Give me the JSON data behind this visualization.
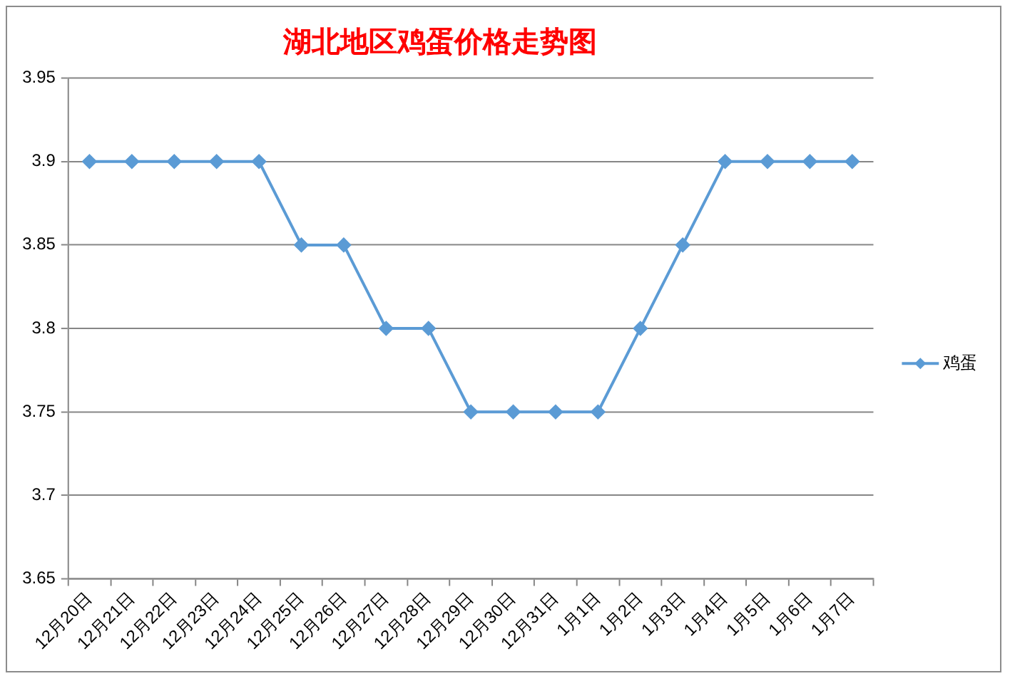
{
  "chart_data": {
    "type": "line",
    "title": "湖北地区鸡蛋价格走势图",
    "categories": [
      "12月20日",
      "12月21日",
      "12月22日",
      "12月23日",
      "12月24日",
      "12月25日",
      "12月26日",
      "12月27日",
      "12月28日",
      "12月29日",
      "12月30日",
      "12月31日",
      "1月1日",
      "1月2日",
      "1月3日",
      "1月4日",
      "1月5日",
      "1月6日",
      "1月7日"
    ],
    "series": [
      {
        "name": "鸡蛋",
        "color": "#5b9bd5",
        "values": [
          3.9,
          3.9,
          3.9,
          3.9,
          3.9,
          3.85,
          3.85,
          3.8,
          3.8,
          3.75,
          3.75,
          3.75,
          3.75,
          3.8,
          3.85,
          3.9,
          3.9,
          3.9,
          3.9
        ]
      }
    ],
    "ylim": [
      3.65,
      3.95
    ],
    "yticks": [
      3.65,
      3.7,
      3.75,
      3.8,
      3.85,
      3.9,
      3.95
    ],
    "grid": "y",
    "legend": "right",
    "marker": "diamond"
  }
}
